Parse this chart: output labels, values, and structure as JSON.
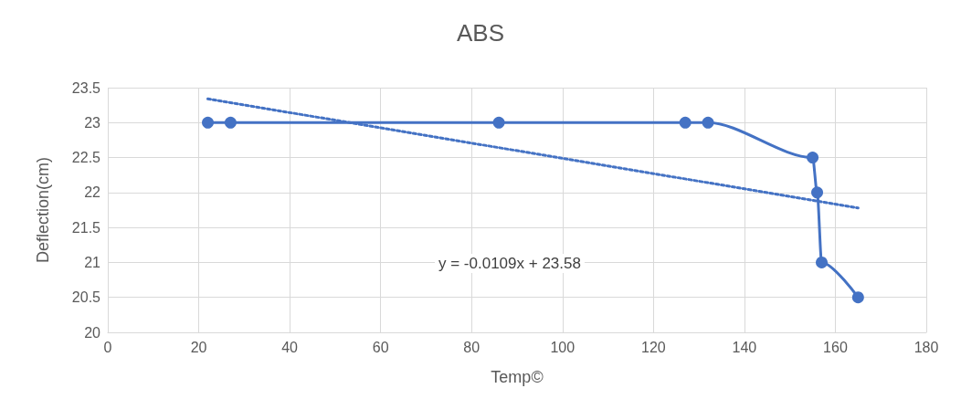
{
  "chart_data": {
    "type": "line",
    "title": "ABS",
    "xlabel": "Temp©",
    "ylabel": "Deflection(cm)",
    "x": [
      22,
      27,
      86,
      127,
      132,
      155,
      156,
      157,
      165
    ],
    "series": [
      {
        "color": "#4472c4",
        "values": [
          23,
          23,
          23,
          23,
          23,
          22.5,
          22,
          21,
          20.5
        ],
        "marker": "circle",
        "line_style": "solid"
      },
      {
        "type": "line",
        "color": "#4472c4",
        "x": [
          22,
          165
        ],
        "values": [
          23.34,
          21.78
        ],
        "marker": "none",
        "line_style": "dotted"
      }
    ],
    "annotations": [
      "y = -0.0109x + 23.58"
    ],
    "xlim": [
      0,
      180
    ],
    "xticks": [
      0,
      20,
      40,
      60,
      80,
      100,
      120,
      140,
      160,
      180
    ],
    "ylim": [
      20,
      23.5
    ],
    "yticks": [
      20,
      20.5,
      21,
      21.5,
      22,
      22.5,
      23,
      23.5
    ],
    "grid": true
  }
}
